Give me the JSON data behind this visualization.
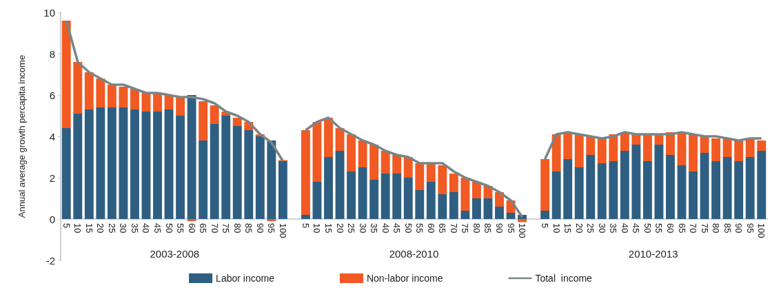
{
  "chart_data": {
    "type": "bar",
    "ylabel": "Annual average growth percapita income",
    "stacked": true,
    "legend": "bottom",
    "grid": false,
    "marker": "none",
    "categories": [
      "5",
      "10",
      "15",
      "20",
      "25",
      "30",
      "35",
      "40",
      "45",
      "50",
      "55",
      "60",
      "65",
      "70",
      "75",
      "80",
      "85",
      "90",
      "95",
      "100",
      null,
      "5",
      "10",
      "15",
      "20",
      "25",
      "30",
      "35",
      "40",
      "45",
      "50",
      "55",
      "60",
      "65",
      "70",
      "75",
      "80",
      "85",
      "90",
      "95",
      "100",
      null,
      "5",
      "10",
      "15",
      "20",
      "25",
      "30",
      "35",
      "40",
      "45",
      "50",
      "55",
      "60",
      "65",
      "70",
      "75",
      "80",
      "85",
      "90",
      "95",
      "100"
    ],
    "annotations": [
      "2003-2008",
      "2008-2010",
      "2010-2013"
    ],
    "ylim": [
      -2,
      10
    ],
    "yticks": [
      -2,
      0,
      2,
      4,
      6,
      8,
      10
    ],
    "series": [
      {
        "name": "Labor income",
        "color": "#2e5f82",
        "values": [
          4.4,
          5.1,
          5.3,
          5.4,
          5.4,
          5.4,
          5.3,
          5.2,
          5.2,
          5.3,
          5.0,
          6.0,
          3.8,
          4.6,
          5.0,
          4.5,
          4.3,
          4.0,
          3.8,
          2.8,
          null,
          0.2,
          1.8,
          3.0,
          3.3,
          2.3,
          2.5,
          1.9,
          2.2,
          2.2,
          2.0,
          1.4,
          1.8,
          1.2,
          1.3,
          0.4,
          1.0,
          1.0,
          0.6,
          0.3,
          0.2,
          null,
          0.4,
          2.3,
          2.9,
          2.5,
          3.1,
          2.7,
          2.8,
          3.3,
          3.6,
          2.8,
          3.6,
          3.1,
          2.6,
          2.3,
          3.2,
          2.8,
          3.0,
          2.8,
          3.0,
          3.3
        ]
      },
      {
        "name": "Non-labor income",
        "color": "#f15a22",
        "values": [
          5.2,
          2.5,
          1.8,
          1.4,
          1.1,
          1.0,
          1.0,
          0.9,
          0.9,
          0.7,
          0.9,
          -0.1,
          1.9,
          0.9,
          0.2,
          0.4,
          0.4,
          0.1,
          -0.1,
          0.05,
          null,
          4.1,
          2.9,
          1.9,
          1.1,
          1.8,
          1.3,
          1.7,
          1.1,
          0.9,
          1.0,
          1.3,
          0.9,
          1.4,
          0.9,
          1.6,
          0.8,
          0.6,
          0.7,
          0.6,
          -0.15,
          null,
          2.5,
          1.8,
          1.3,
          1.6,
          0.9,
          1.2,
          1.3,
          0.9,
          0.5,
          1.3,
          0.5,
          1.1,
          1.6,
          1.8,
          0.8,
          1.1,
          0.9,
          1.0,
          0.9,
          0.5
        ]
      },
      {
        "name": "Total  income",
        "type": "line",
        "color": "#7a8489",
        "values": [
          9.6,
          7.6,
          7.1,
          6.8,
          6.5,
          6.5,
          6.3,
          6.1,
          6.1,
          6.0,
          5.9,
          5.9,
          5.8,
          5.6,
          5.2,
          5.0,
          4.7,
          4.1,
          3.7,
          2.8,
          null,
          4.3,
          4.7,
          4.9,
          4.4,
          4.1,
          3.8,
          3.6,
          3.3,
          3.1,
          3.0,
          2.7,
          2.7,
          2.7,
          2.3,
          2.0,
          1.8,
          1.6,
          1.3,
          0.9,
          0.1,
          null,
          2.9,
          4.1,
          4.2,
          4.1,
          4.0,
          3.9,
          4.0,
          4.2,
          4.1,
          4.1,
          4.1,
          4.1,
          4.2,
          4.1,
          4.0,
          4.0,
          3.9,
          3.8,
          3.9,
          3.9
        ]
      }
    ]
  }
}
